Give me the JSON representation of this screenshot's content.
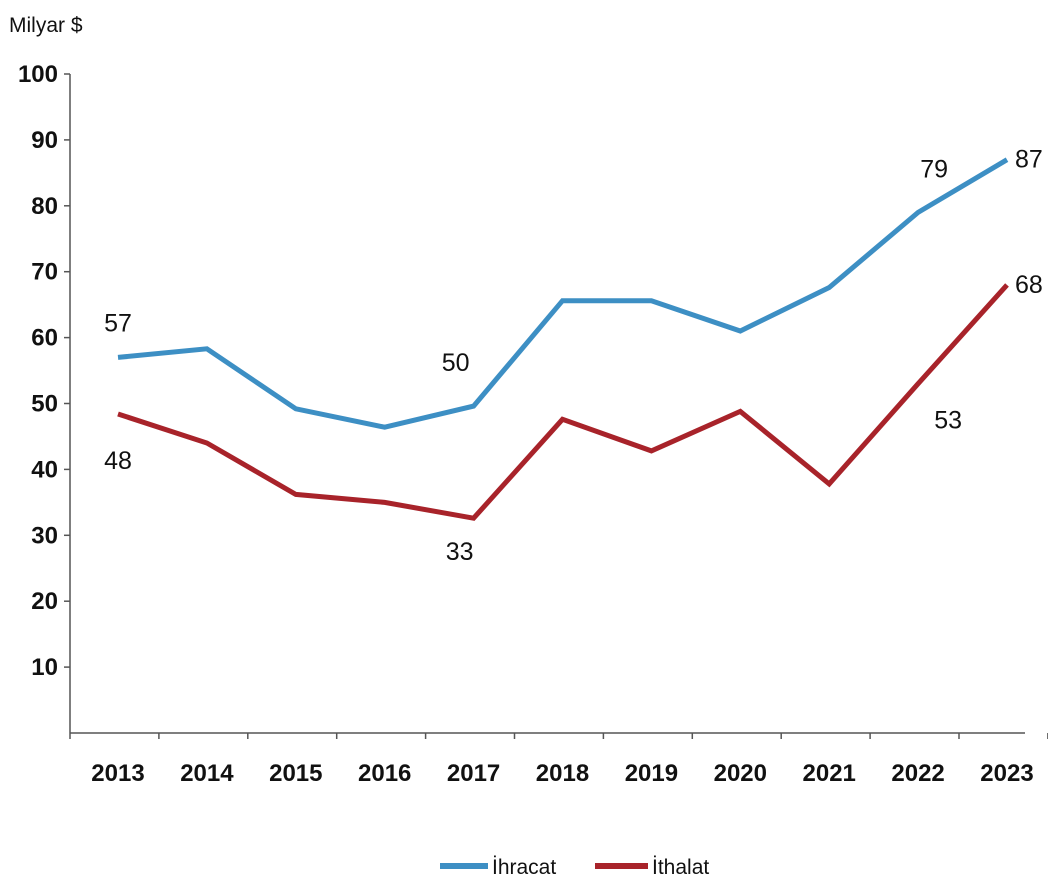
{
  "chart_data": {
    "type": "line",
    "title": "",
    "ylabel": "Milyar $",
    "xlabel": "",
    "categories": [
      "2013",
      "2014",
      "2015",
      "2016",
      "2017",
      "2018",
      "2019",
      "2020",
      "2021",
      "2022",
      "2023"
    ],
    "ylim": [
      0,
      100
    ],
    "yticks": [
      10,
      20,
      30,
      40,
      50,
      60,
      70,
      80,
      90,
      100
    ],
    "grid": false,
    "legend_position": "bottom",
    "series": [
      {
        "name": "İhracat",
        "color": "#3d8fc4",
        "values": [
          57,
          58.3,
          49.2,
          46.4,
          49.6,
          65.6,
          65.6,
          61.0,
          67.6,
          79,
          87
        ],
        "labels": [
          {
            "index": 0,
            "text": "57",
            "position": "above"
          },
          {
            "index": 4,
            "text": "50",
            "position": "above-left"
          },
          {
            "index": 9,
            "text": "79",
            "position": "above-right"
          },
          {
            "index": 10,
            "text": "87",
            "position": "right"
          }
        ]
      },
      {
        "name": "İthalat",
        "color": "#a8232a",
        "values": [
          48.4,
          44.0,
          36.2,
          35.0,
          32.6,
          47.6,
          42.8,
          48.8,
          37.8,
          53,
          68
        ],
        "labels": [
          {
            "index": 0,
            "text": "48",
            "position": "below"
          },
          {
            "index": 4,
            "text": "33",
            "position": "below-left"
          },
          {
            "index": 9,
            "text": "53",
            "position": "below-right"
          },
          {
            "index": 10,
            "text": "68",
            "position": "right"
          }
        ]
      }
    ]
  }
}
